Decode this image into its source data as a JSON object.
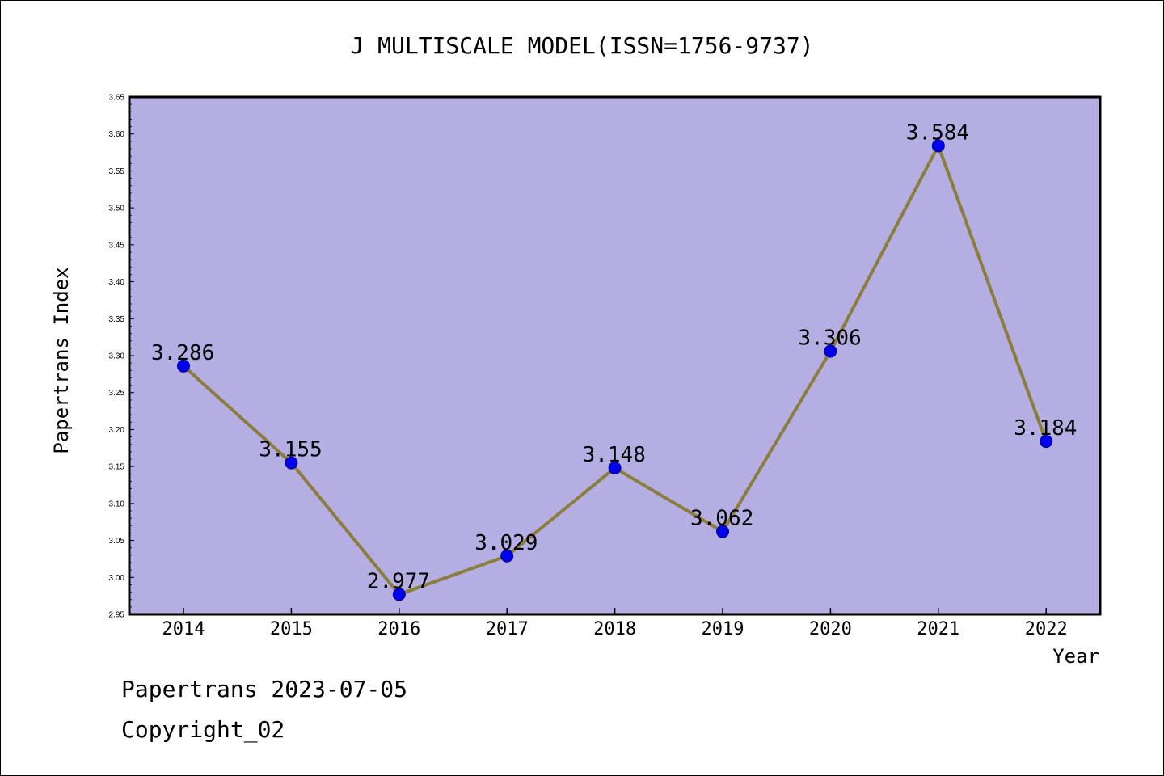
{
  "chart_data": {
    "type": "line",
    "title": "J MULTISCALE MODEL(ISSN=1756-9737)",
    "xlabel": "Year",
    "ylabel": "Papertrans Index",
    "categories": [
      "2014",
      "2015",
      "2016",
      "2017",
      "2018",
      "2019",
      "2020",
      "2021",
      "2022"
    ],
    "series": [
      {
        "values": [
          3.286,
          3.155,
          2.977,
          3.029,
          3.148,
          3.062,
          3.306,
          3.584,
          3.184
        ],
        "data_labels": [
          "3.286",
          "3.155",
          "2.977",
          "3.029",
          "3.148",
          "3.062",
          "3.306",
          "3.584",
          "3.184"
        ]
      }
    ],
    "ylim": [
      2.95,
      3.65
    ],
    "yticks": [
      "2.95",
      "3.00",
      "3.05",
      "3.10",
      "3.15",
      "3.20",
      "3.25",
      "3.30",
      "3.35",
      "3.40",
      "3.45",
      "3.50",
      "3.55",
      "3.60",
      "3.65"
    ],
    "grid": false,
    "legend": "none",
    "colors": {
      "plot_background": "#b5aee2",
      "line": "#8b7d3c",
      "marker": "#0000ee",
      "marker_edge": "#00008b",
      "axis": "#000000"
    }
  },
  "footer": {
    "date_line": "Papertrans 2023-07-05",
    "copyright_line": "Copyright_02"
  }
}
